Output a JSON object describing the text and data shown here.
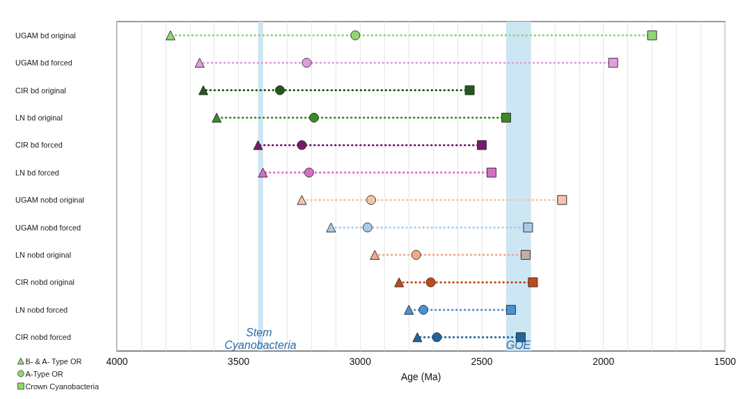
{
  "chart_data": {
    "type": "scatter",
    "orientation": "horizontal",
    "xlabel": "Age (Ma)",
    "categories": [
      "UGAM bd original",
      "UGAM bd forced",
      "CIR bd original",
      "LN bd original",
      "CIR bd forced",
      "LN bd forced",
      "UGAM nobd original",
      "UGAM nobd forced",
      "LN nobd original",
      "CIR nobd original",
      "LN nobd forced",
      "CIR nobd forced"
    ],
    "xlim": [
      4000,
      1500
    ],
    "xticks": [
      4000,
      {
        "value": 3900,
        "label": null
      },
      {
        "value": 3800,
        "label": null
      },
      {
        "value": 3700,
        "label": null
      },
      {
        "value": 3600,
        "label": null
      },
      3500,
      {
        "value": 3400,
        "label": null
      },
      {
        "value": 3300,
        "label": null
      },
      {
        "value": 3200,
        "label": null
      },
      {
        "value": 3100,
        "label": null
      },
      3000,
      {
        "value": 2900,
        "label": null
      },
      {
        "value": 2800,
        "label": null
      },
      {
        "value": 2700,
        "label": null
      },
      {
        "value": 2600,
        "label": null
      },
      2500,
      {
        "value": 2400,
        "label": null
      },
      {
        "value": 2300,
        "label": null
      },
      {
        "value": 2200,
        "label": null
      },
      {
        "value": 2100,
        "label": null
      },
      2000,
      {
        "value": 1900,
        "label": null
      },
      {
        "value": 1800,
        "label": null
      },
      {
        "value": 1700,
        "label": null
      },
      {
        "value": 1600,
        "label": null
      },
      1500
    ],
    "grid": "x",
    "legend": "bottom left",
    "line_style": "dotted",
    "bands": [
      {
        "axis": "x",
        "from": 3420,
        "to": 3400,
        "label": "Stem Cyanobacteria",
        "color": "#c6e3f3"
      },
      {
        "axis": "x",
        "from": 2400,
        "to": 2300,
        "label": "GOE",
        "color": "#c6e3f3"
      }
    ],
    "series": [
      {
        "name": "B- & A- Type OR",
        "marker": "triangle",
        "values": [
          3780,
          3660,
          3645,
          3590,
          3420,
          3400,
          3240,
          3120,
          2940,
          2840,
          2800,
          2765
        ],
        "colors": [
          "#8fd872",
          "#e49ddb",
          "#1f5a17",
          "#3b8a25",
          "#7a1a6a",
          "#d86ec8",
          "#f5c3a6",
          "#a8cbea",
          "#f2a98a",
          "#c24a14",
          "#4a90d9",
          "#21649e"
        ]
      },
      {
        "name": "A-Type OR",
        "marker": "circle",
        "values": [
          3020,
          3220,
          3330,
          3190,
          3240,
          3210,
          2955,
          2970,
          2770,
          2710,
          2740,
          2685
        ],
        "colors": [
          "#8fd872",
          "#e49ddb",
          "#1f5a17",
          "#3b8a25",
          "#7a1a6a",
          "#d86ec8",
          "#f5c3a6",
          "#a8cbea",
          "#f2a98a",
          "#c24a14",
          "#4a90d9",
          "#21649e"
        ]
      },
      {
        "name": "Crown Cyanobacteria",
        "marker": "square",
        "values": [
          1800,
          1960,
          2550,
          2400,
          2500,
          2460,
          2170,
          2310,
          2320,
          2290,
          2380,
          2340
        ],
        "colors": [
          "#8fd872",
          "#e49ddb",
          "#1f5a17",
          "#3b8a25",
          "#7a1a6a",
          "#d86ec8",
          "#f5c3a6",
          "#a8cbea",
          "#c0aea5",
          "#c24a14",
          "#4a90d9",
          "#21649e"
        ]
      }
    ]
  }
}
